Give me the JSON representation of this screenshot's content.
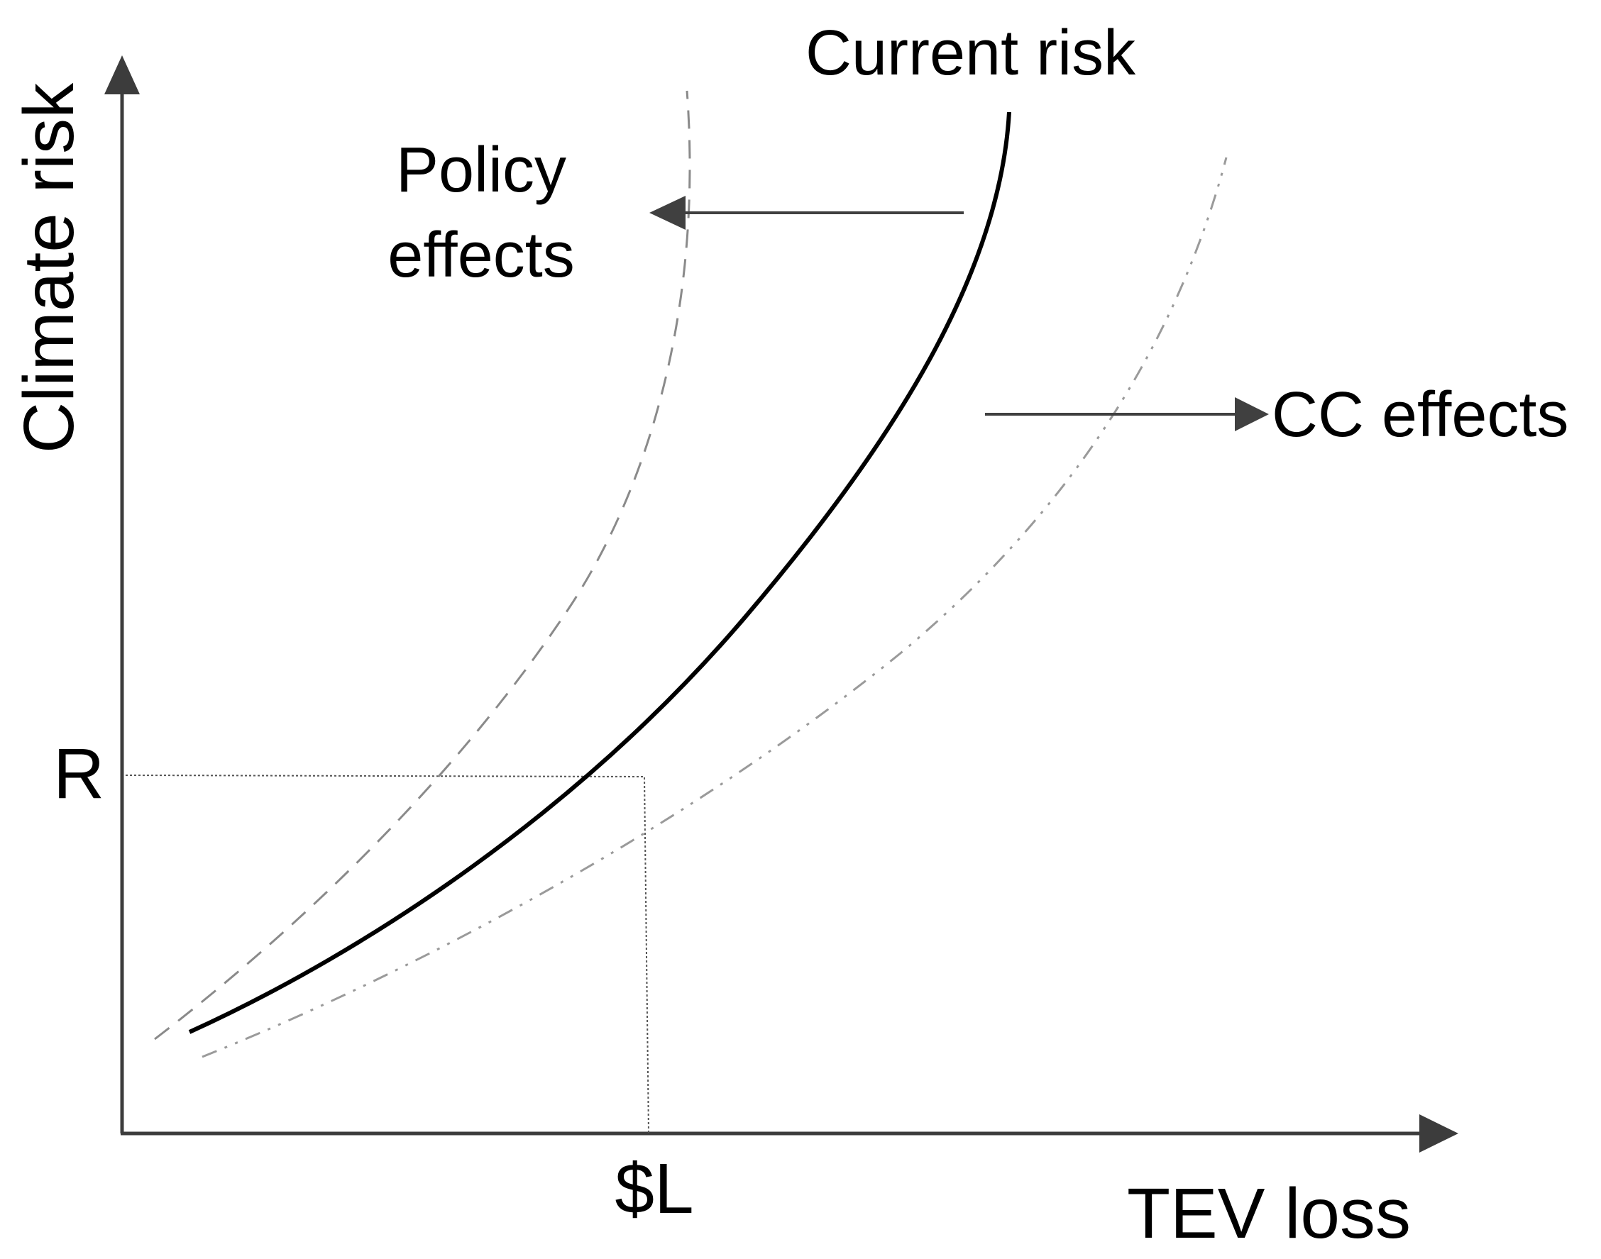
{
  "axes": {
    "x_label": "TEV loss",
    "y_label": "Climate risk",
    "x_tick": "$L",
    "y_tick": "R"
  },
  "curves": {
    "current_label": "Current risk",
    "policy_label_line1": "Policy",
    "policy_label_line2": "effects",
    "cc_label": "CC effects"
  },
  "colors": {
    "axis": "#3c3c3c",
    "current_curve": "#000000",
    "policy_curve": "#8a8a8a",
    "cc_curve": "#9a9a9a",
    "arrow": "#404040",
    "guide": "#555555"
  }
}
